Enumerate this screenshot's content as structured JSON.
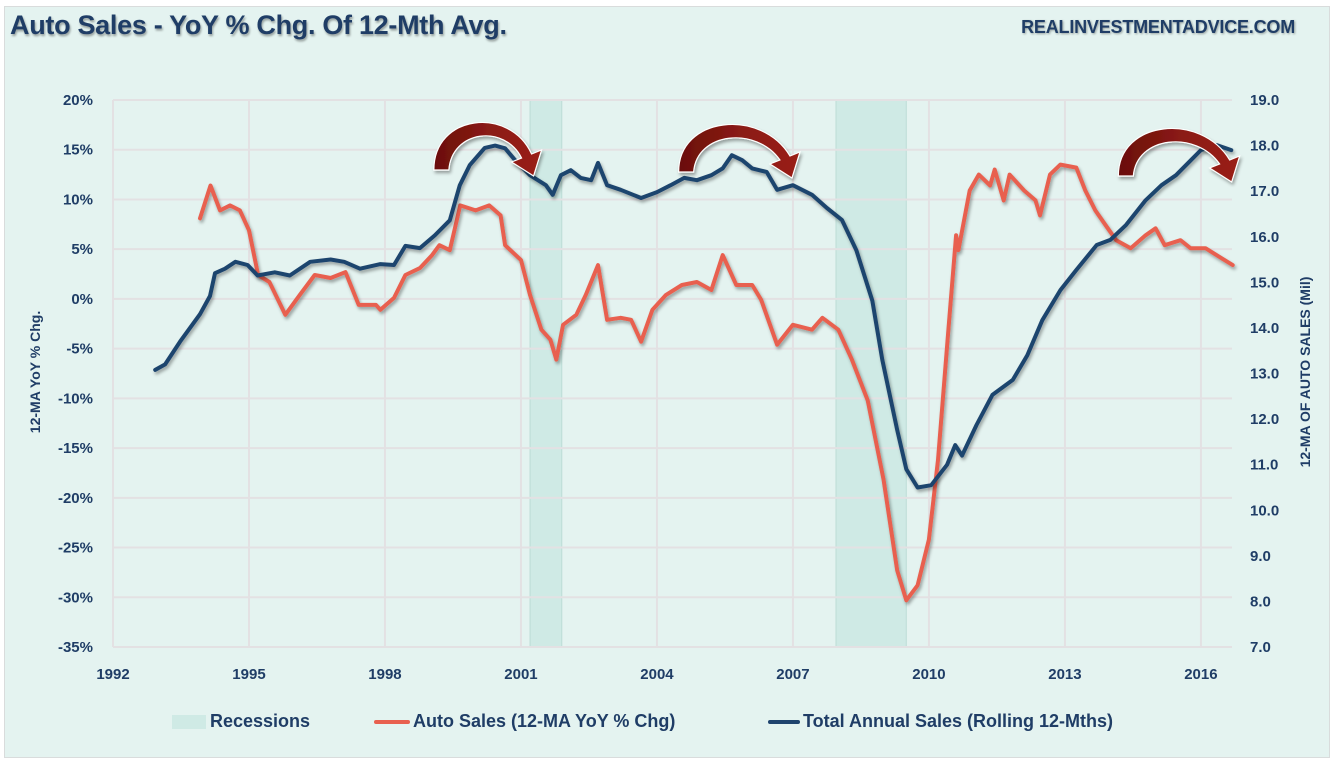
{
  "header": {
    "title": "Auto Sales - YoY % Chg. Of 12-Mth Avg.",
    "brand": "REALINVESTMENTADVICE.COM"
  },
  "colors": {
    "background": "#e4f3f0",
    "recession": "#cfeae5",
    "auto_sales": "#e8604f",
    "total_sales": "#1f446e",
    "arrow": "#7a1410",
    "text": "#1f3d66",
    "grid": "#e3e1e3"
  },
  "legend": {
    "recessions": "Recessions",
    "auto_sales": "Auto Sales (12-MA YoY % Chg)",
    "total_sales": "Total Annual Sales (Rolling 12-Mths)"
  },
  "chart_data": {
    "type": "line",
    "title": "Auto Sales - YoY % Chg. Of 12-Mth Avg.",
    "xlabel": "",
    "ylabel": "12-MA YoY % Chg.",
    "y2label": "12-MA OF AUTO SALES (Mil)",
    "xlim": [
      1992,
      2016.7
    ],
    "ylim": [
      -35,
      20
    ],
    "y2lim": [
      7.0,
      19.0
    ],
    "x_ticks": [
      "1992",
      "1995",
      "1998",
      "2001",
      "2004",
      "2007",
      "2010",
      "2013",
      "2016"
    ],
    "y_ticks": [
      "20%",
      "15%",
      "10%",
      "5%",
      "0%",
      "-5%",
      "-10%",
      "-15%",
      "-20%",
      "-25%",
      "-30%",
      "-35%"
    ],
    "y2_ticks": [
      "19.0",
      "18.0",
      "17.0",
      "16.0",
      "15.0",
      "14.0",
      "13.0",
      "12.0",
      "11.0",
      "10.0",
      "9.0",
      "8.0",
      "7.0"
    ],
    "grid": true,
    "legend_position": "bottom",
    "recessions": [
      {
        "start": 2001.2,
        "end": 2001.9
      },
      {
        "start": 2007.95,
        "end": 2009.5
      }
    ],
    "annotations": [
      {
        "type": "curved-arrow",
        "from": 1999.1,
        "to": 2001.3,
        "description": "peak-and-rollover arrow"
      },
      {
        "type": "curved-arrow",
        "from": 2004.5,
        "to": 2007.0,
        "description": "peak-and-rollover arrow"
      },
      {
        "type": "curved-arrow",
        "from": 2014.2,
        "to": 2016.7,
        "description": "peak-and-rollover arrow"
      }
    ],
    "series": [
      {
        "name": "Auto Sales (12-MA YoY % Chg)",
        "axis": "left",
        "unit": "%",
        "points": [
          [
            1993.92,
            8.1
          ],
          [
            1994.15,
            11.4
          ],
          [
            1994.36,
            8.9
          ],
          [
            1994.58,
            9.4
          ],
          [
            1994.8,
            8.9
          ],
          [
            1995.0,
            6.9
          ],
          [
            1995.2,
            2.4
          ],
          [
            1995.45,
            1.7
          ],
          [
            1995.8,
            -1.6
          ],
          [
            1996.12,
            0.4
          ],
          [
            1996.45,
            2.4
          ],
          [
            1996.8,
            2.1
          ],
          [
            1997.13,
            2.7
          ],
          [
            1997.42,
            -0.6
          ],
          [
            1997.8,
            -0.6
          ],
          [
            1997.9,
            -1.1
          ],
          [
            1998.2,
            0.1
          ],
          [
            1998.45,
            2.4
          ],
          [
            1998.77,
            3.1
          ],
          [
            1999.04,
            4.4
          ],
          [
            1999.2,
            5.4
          ],
          [
            1999.43,
            4.9
          ],
          [
            1999.66,
            9.4
          ],
          [
            2000.0,
            8.9
          ],
          [
            2000.3,
            9.4
          ],
          [
            2000.55,
            8.4
          ],
          [
            2000.65,
            5.4
          ],
          [
            2001.0,
            3.9
          ],
          [
            2001.2,
            0.4
          ],
          [
            2001.45,
            -3.1
          ],
          [
            2001.65,
            -4.1
          ],
          [
            2001.78,
            -6.1
          ],
          [
            2001.93,
            -2.6
          ],
          [
            2002.22,
            -1.6
          ],
          [
            2002.43,
            0.4
          ],
          [
            2002.7,
            3.4
          ],
          [
            2002.9,
            -2.1
          ],
          [
            2003.2,
            -1.9
          ],
          [
            2003.43,
            -2.1
          ],
          [
            2003.65,
            -4.3
          ],
          [
            2003.9,
            -1.1
          ],
          [
            2004.2,
            0.4
          ],
          [
            2004.55,
            1.4
          ],
          [
            2004.88,
            1.7
          ],
          [
            2005.2,
            0.9
          ],
          [
            2005.45,
            4.4
          ],
          [
            2005.75,
            1.4
          ],
          [
            2006.1,
            1.4
          ],
          [
            2006.3,
            -0.1
          ],
          [
            2006.65,
            -4.6
          ],
          [
            2007.0,
            -2.6
          ],
          [
            2007.42,
            -3.1
          ],
          [
            2007.65,
            -1.9
          ],
          [
            2008.0,
            -3.1
          ],
          [
            2008.3,
            -6.1
          ],
          [
            2008.65,
            -10.2
          ],
          [
            2009.0,
            -18.2
          ],
          [
            2009.3,
            -27.3
          ],
          [
            2009.5,
            -30.3
          ],
          [
            2009.75,
            -28.8
          ],
          [
            2010.0,
            -24.2
          ],
          [
            2010.2,
            -16.2
          ],
          [
            2010.43,
            -3.1
          ],
          [
            2010.6,
            6.4
          ],
          [
            2010.65,
            4.9
          ],
          [
            2010.9,
            10.9
          ],
          [
            2011.1,
            12.5
          ],
          [
            2011.35,
            11.4
          ],
          [
            2011.45,
            13.0
          ],
          [
            2011.65,
            9.9
          ],
          [
            2011.78,
            12.5
          ],
          [
            2012.1,
            10.9
          ],
          [
            2012.35,
            9.9
          ],
          [
            2012.45,
            8.4
          ],
          [
            2012.67,
            12.5
          ],
          [
            2012.9,
            13.5
          ],
          [
            2013.25,
            13.2
          ],
          [
            2013.45,
            10.9
          ],
          [
            2013.67,
            8.9
          ],
          [
            2013.9,
            7.4
          ],
          [
            2014.13,
            5.9
          ],
          [
            2014.45,
            5.1
          ],
          [
            2014.78,
            6.4
          ],
          [
            2015.0,
            7.1
          ],
          [
            2015.2,
            5.4
          ],
          [
            2015.55,
            5.9
          ],
          [
            2015.77,
            5.1
          ],
          [
            2016.1,
            5.1
          ],
          [
            2016.45,
            4.1
          ],
          [
            2016.7,
            3.4
          ]
        ]
      },
      {
        "name": "Total Annual Sales (Rolling 12-Mths)",
        "axis": "right",
        "unit": "Mil",
        "points": [
          [
            1992.93,
            13.08
          ],
          [
            1993.15,
            13.2
          ],
          [
            1993.48,
            13.7
          ],
          [
            1993.92,
            14.3
          ],
          [
            1994.14,
            14.7
          ],
          [
            1994.25,
            15.2
          ],
          [
            1994.47,
            15.3
          ],
          [
            1994.7,
            15.45
          ],
          [
            1994.97,
            15.38
          ],
          [
            1995.19,
            15.15
          ],
          [
            1995.57,
            15.22
          ],
          [
            1995.9,
            15.15
          ],
          [
            1996.35,
            15.45
          ],
          [
            1996.8,
            15.5
          ],
          [
            1997.1,
            15.45
          ],
          [
            1997.45,
            15.3
          ],
          [
            1997.9,
            15.4
          ],
          [
            1998.2,
            15.38
          ],
          [
            1998.45,
            15.8
          ],
          [
            1998.77,
            15.75
          ],
          [
            1999.1,
            16.03
          ],
          [
            1999.43,
            16.36
          ],
          [
            1999.65,
            17.13
          ],
          [
            1999.87,
            17.57
          ],
          [
            2000.2,
            17.95
          ],
          [
            2000.43,
            18.0
          ],
          [
            2000.65,
            17.94
          ],
          [
            2000.87,
            17.68
          ],
          [
            2001.2,
            17.35
          ],
          [
            2001.55,
            17.13
          ],
          [
            2001.7,
            16.92
          ],
          [
            2001.88,
            17.35
          ],
          [
            2002.1,
            17.46
          ],
          [
            2002.32,
            17.29
          ],
          [
            2002.55,
            17.24
          ],
          [
            2002.7,
            17.62
          ],
          [
            2002.9,
            17.13
          ],
          [
            2003.2,
            17.03
          ],
          [
            2003.65,
            16.85
          ],
          [
            2004.0,
            16.98
          ],
          [
            2004.3,
            17.13
          ],
          [
            2004.6,
            17.29
          ],
          [
            2004.88,
            17.24
          ],
          [
            2005.2,
            17.35
          ],
          [
            2005.45,
            17.5
          ],
          [
            2005.65,
            17.79
          ],
          [
            2005.88,
            17.68
          ],
          [
            2006.1,
            17.5
          ],
          [
            2006.42,
            17.42
          ],
          [
            2006.65,
            17.03
          ],
          [
            2007.0,
            17.13
          ],
          [
            2007.42,
            16.92
          ],
          [
            2007.75,
            16.63
          ],
          [
            2008.08,
            16.37
          ],
          [
            2008.4,
            15.7
          ],
          [
            2008.75,
            14.6
          ],
          [
            2008.97,
            13.3
          ],
          [
            2009.3,
            11.76
          ],
          [
            2009.5,
            10.9
          ],
          [
            2009.75,
            10.5
          ],
          [
            2010.05,
            10.55
          ],
          [
            2010.4,
            11.0
          ],
          [
            2010.58,
            11.43
          ],
          [
            2010.73,
            11.2
          ],
          [
            2011.05,
            11.87
          ],
          [
            2011.4,
            12.53
          ],
          [
            2011.85,
            12.86
          ],
          [
            2012.17,
            13.4
          ],
          [
            2012.5,
            14.17
          ],
          [
            2012.9,
            14.83
          ],
          [
            2013.25,
            15.27
          ],
          [
            2013.7,
            15.82
          ],
          [
            2014.0,
            15.93
          ],
          [
            2014.35,
            16.26
          ],
          [
            2014.78,
            16.8
          ],
          [
            2015.13,
            17.13
          ],
          [
            2015.45,
            17.35
          ],
          [
            2015.78,
            17.68
          ],
          [
            2016.0,
            17.9
          ],
          [
            2016.35,
            18.01
          ],
          [
            2016.55,
            17.94
          ],
          [
            2016.67,
            17.9
          ]
        ]
      }
    ]
  }
}
